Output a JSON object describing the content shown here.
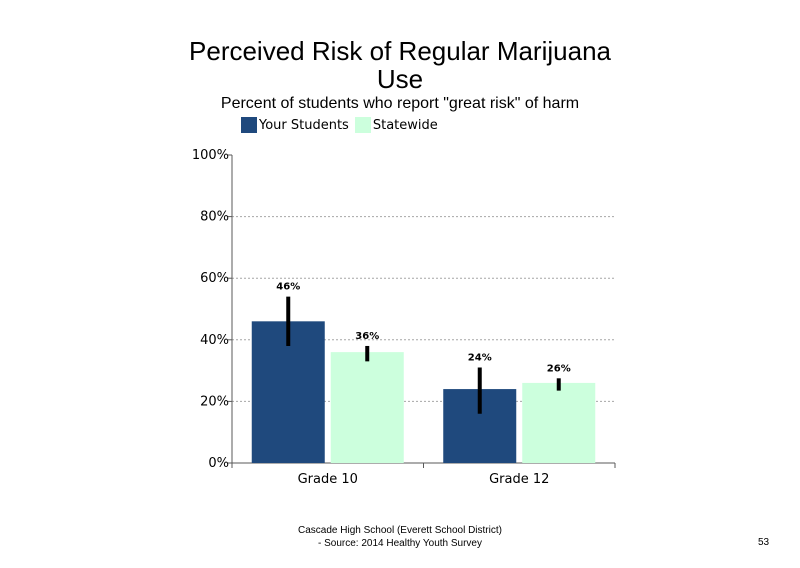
{
  "chart_data": {
    "type": "bar",
    "title_line1": "Perceived Risk of Regular Marijuana",
    "title_line2": "Use",
    "subtitle": "Percent of students who report \"great risk\" of harm",
    "categories": [
      "Grade 10",
      "Grade 12"
    ],
    "series": [
      {
        "name": "Your Students",
        "color": "#1f497d",
        "values": [
          46,
          24
        ],
        "error_low": [
          38,
          16
        ],
        "error_high": [
          54,
          31
        ]
      },
      {
        "name": "Statewide",
        "color": "#ccffdd",
        "values": [
          36,
          26
        ],
        "error_low": [
          33,
          23.5
        ],
        "error_high": [
          38,
          27.5
        ]
      }
    ],
    "data_labels": [
      [
        "46%",
        "24%"
      ],
      [
        "36%",
        "26%"
      ]
    ],
    "y_ticks": [
      "0%",
      "20%",
      "40%",
      "60%",
      "80%",
      "100%"
    ],
    "ylim": [
      0,
      100
    ],
    "grid": true,
    "legend_position": "top-left"
  },
  "footer": {
    "line1": "Cascade High School (Everett School District)",
    "line2": "- Source: 2014 Healthy  Youth Survey",
    "page_number": "53"
  }
}
